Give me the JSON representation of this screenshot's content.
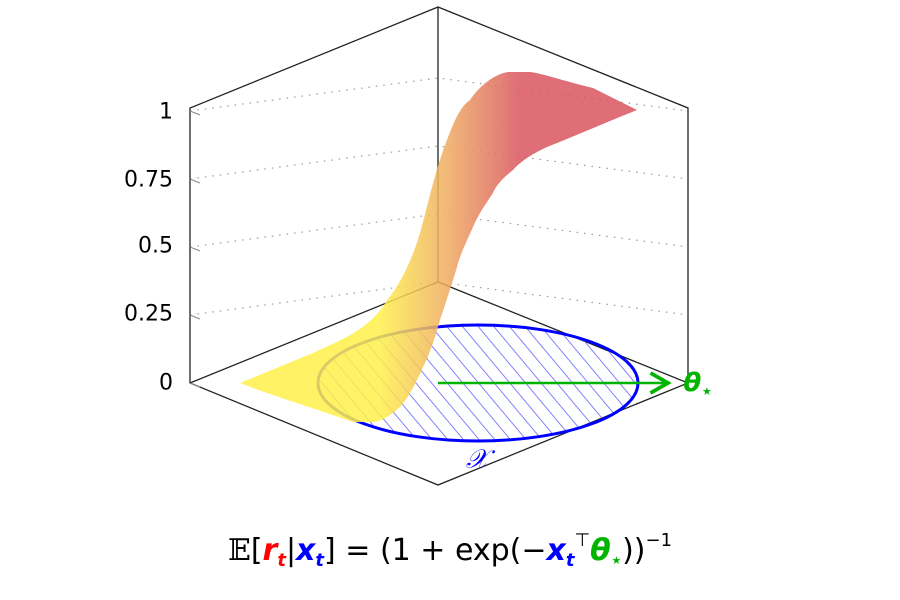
{
  "z_axis": {
    "ticks": [
      "0",
      "0.25",
      "0.5",
      "0.75",
      "1"
    ],
    "range": [
      0,
      1
    ]
  },
  "labels": {
    "domain": "𝒳",
    "theta": "θ",
    "theta_sub": "⋆"
  },
  "formula": {
    "expectation": "𝔼",
    "open_bracket": "[",
    "r": "r",
    "r_sub": "t",
    "bar": "|",
    "x": "x",
    "x_sub": "t",
    "close_bracket": "]",
    "equals_part": " = (1 + exp(−",
    "x2": "x",
    "x2_sub": "t",
    "transpose": "⊤",
    "theta": "θ",
    "theta_sub": "⋆",
    "close_part": "))",
    "exponent": "−1"
  },
  "colors": {
    "surface_low": "#fff04a",
    "surface_high": "#d9545f",
    "domain": "#0000ff",
    "theta": "#00b400",
    "reward": "#ff0000"
  }
}
